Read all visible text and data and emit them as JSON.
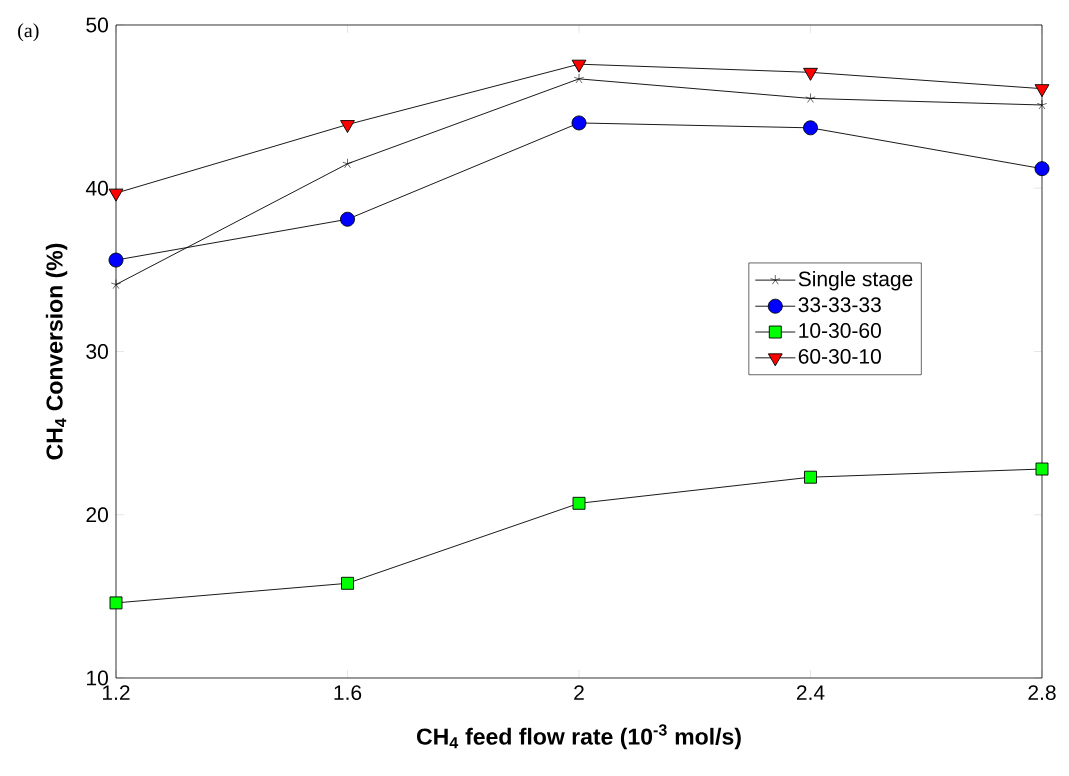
{
  "chart_data": {
    "type": "line",
    "xlabel": "CH$_{4}$ feed flow rate (10$^{-3}$ mol/s)",
    "ylabel": "CH$_{4}$ Conversion (%)",
    "annotations": [
      "(a)"
    ],
    "x": [
      1.2,
      1.6,
      2,
      2.4,
      2.8
    ],
    "xlim": [
      1.2,
      2.8
    ],
    "xticks": [
      1.2,
      1.6,
      2,
      2.4,
      2.8
    ],
    "ylim": [
      10,
      50
    ],
    "yticks": [
      10,
      20,
      30,
      40,
      50
    ],
    "grid": false,
    "legend": "right",
    "line_style": "solid",
    "series": [
      {
        "name": "Single stage",
        "color": "#000000",
        "marker": "cross",
        "values": [
          34.1,
          41.5,
          46.7,
          45.5,
          45.1
        ]
      },
      {
        "name": "33-33-33",
        "color": "#0000ff",
        "marker": "circle",
        "values": [
          35.6,
          38.1,
          44.0,
          43.7,
          41.2
        ]
      },
      {
        "name": "10-30-60",
        "color": "#00ff00",
        "marker": "square",
        "values": [
          14.6,
          15.8,
          20.7,
          22.3,
          22.8
        ]
      },
      {
        "name": "60-30-10",
        "color": "#ff0000",
        "marker": "triangle",
        "values": [
          39.7,
          43.9,
          47.6,
          47.1,
          46.1
        ]
      }
    ]
  }
}
